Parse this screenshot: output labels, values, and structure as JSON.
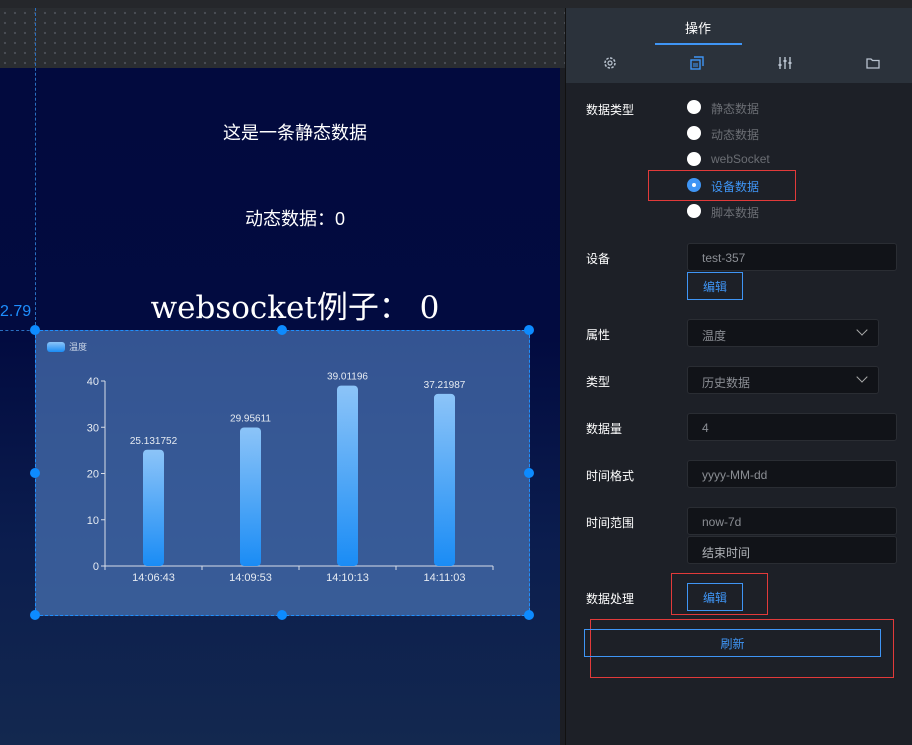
{
  "canvas": {
    "guide_value": "2.79",
    "static_text": "这是一条静态数据",
    "dynamic_text": "动态数据：0",
    "websocket_text": "websocket例子： 0"
  },
  "chart_data": {
    "type": "bar",
    "legend": "温度",
    "legend_position": "top-left",
    "categories": [
      "14:06:43",
      "14:09:53",
      "14:10:13",
      "14:11:03"
    ],
    "series": [
      {
        "name": "温度",
        "values": [
          25.131752,
          29.95611,
          39.01196,
          37.21987
        ]
      }
    ],
    "data_labels": [
      "25.131752",
      "29.95611",
      "39.01196",
      "37.21987"
    ],
    "yticks": [
      0,
      10,
      20,
      30,
      40
    ],
    "ylim": [
      0,
      40
    ],
    "grid": false,
    "colors": {
      "bar_top": "#8cc4f8",
      "bar_bottom": "#1a8cf5"
    }
  },
  "panel": {
    "tab": "操作",
    "icons": [
      "gear-icon",
      "copy-icon",
      "sliders-icon",
      "folder-icon"
    ],
    "data_type_label": "数据类型",
    "data_types": [
      {
        "label": "静态数据",
        "selected": false
      },
      {
        "label": "动态数据",
        "selected": false
      },
      {
        "label": "webSocket",
        "selected": false
      },
      {
        "label": "设备数据",
        "selected": true
      },
      {
        "label": "脚本数据",
        "selected": false
      }
    ],
    "device_label": "设备",
    "device_value": "test-357",
    "edit_label": "编辑",
    "attr_label": "属性",
    "attr_value": "温度",
    "type_label": "类型",
    "type_value": "历史数据",
    "count_label": "数据量",
    "count_value": "4",
    "format_label": "时间格式",
    "format_value": "yyyy-MM-dd",
    "range_label": "时间范围",
    "range_start": "now-7d",
    "range_end_placeholder": "结束时间",
    "process_label": "数据处理",
    "process_edit": "编辑",
    "refresh_label": "刷新",
    "accent": "#3f95f5"
  }
}
